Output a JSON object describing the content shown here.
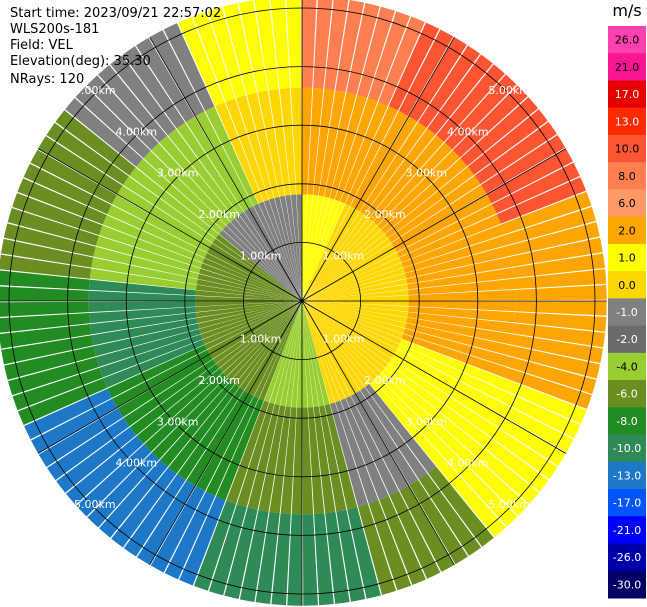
{
  "header": {
    "start_time": "Start time: 2023/09/21 22:57:02",
    "instrument": "WLS200s-181",
    "field": "Field: VEL",
    "elevation": "Elevation(deg): 35.30",
    "nrays": "NRays: 120"
  },
  "chart_data": {
    "type": "heatmap",
    "projection": "polar-ppi",
    "field": "VEL",
    "units": "m/s",
    "n_rays": 120,
    "range_rings_km": [
      1.0,
      2.0,
      3.0,
      4.0,
      5.0
    ],
    "ring_labels": [
      "1.00km",
      "2.00km",
      "3.00km",
      "4.00km",
      "5.00km"
    ],
    "max_range_km": 5.2,
    "spokes_deg": [
      0,
      30,
      60,
      90,
      120,
      150,
      180,
      210,
      240,
      270,
      300,
      330
    ],
    "colorbar": {
      "unit": "m/s",
      "ticks": [
        "26.0",
        "21.0",
        "17.0",
        "13.0",
        "10.0",
        "8.0",
        "6.0",
        "2.0",
        "1.0",
        "0.0",
        "-1.0",
        "-2.0",
        "-4.0",
        "-6.0",
        "-8.0",
        "-10.0",
        "-13.0",
        "-17.0",
        "-21.0",
        "-26.0",
        "-30.0"
      ],
      "colors": [
        "#ff40b0",
        "#ff1493",
        "#e60000",
        "#ff2a00",
        "#ff5533",
        "#ff7f50",
        "#ff9966",
        "#ffa500",
        "#ffff00",
        "#ffd700",
        "#808080",
        "#6b6b6b",
        "#9acd32",
        "#6b8e23",
        "#228b22",
        "#2e8b57",
        "#1e78c8",
        "#0055ff",
        "#0000ff",
        "#0000aa",
        "#000066"
      ]
    },
    "velocity_sectors": [
      {
        "from_deg": 0,
        "to_deg": 25,
        "outer": "#ff7f50",
        "mid": "#ffa500",
        "inner": "#ffff00"
      },
      {
        "from_deg": 25,
        "to_deg": 70,
        "outer": "#ff5533",
        "mid": "#ffa500",
        "inner": "#ffd700"
      },
      {
        "from_deg": 70,
        "to_deg": 110,
        "outer": "#ffa500",
        "mid": "#ffa500",
        "inner": "#ffd700"
      },
      {
        "from_deg": 110,
        "to_deg": 140,
        "outer": "#ffff00",
        "mid": "#ffff00",
        "inner": "#ffd700"
      },
      {
        "from_deg": 140,
        "to_deg": 165,
        "outer": "#6b8e23",
        "mid": "#808080",
        "inner": "#ffd700"
      },
      {
        "from_deg": 165,
        "to_deg": 200,
        "outer": "#2e8b57",
        "mid": "#6b8e23",
        "inner": "#9acd32"
      },
      {
        "from_deg": 200,
        "to_deg": 245,
        "outer": "#1e78c8",
        "mid": "#228b22",
        "inner": "#6b8e23"
      },
      {
        "from_deg": 245,
        "to_deg": 275,
        "outer": "#228b22",
        "mid": "#2e8b57",
        "inner": "#6b8e23"
      },
      {
        "from_deg": 275,
        "to_deg": 310,
        "outer": "#6b8e23",
        "mid": "#9acd32",
        "inner": "#6b8e23"
      },
      {
        "from_deg": 310,
        "to_deg": 335,
        "outer": "#808080",
        "mid": "#9acd32",
        "inner": "#808080"
      },
      {
        "from_deg": 335,
        "to_deg": 360,
        "outer": "#ffff00",
        "mid": "#ffd700",
        "inner": "#808080"
      }
    ]
  }
}
